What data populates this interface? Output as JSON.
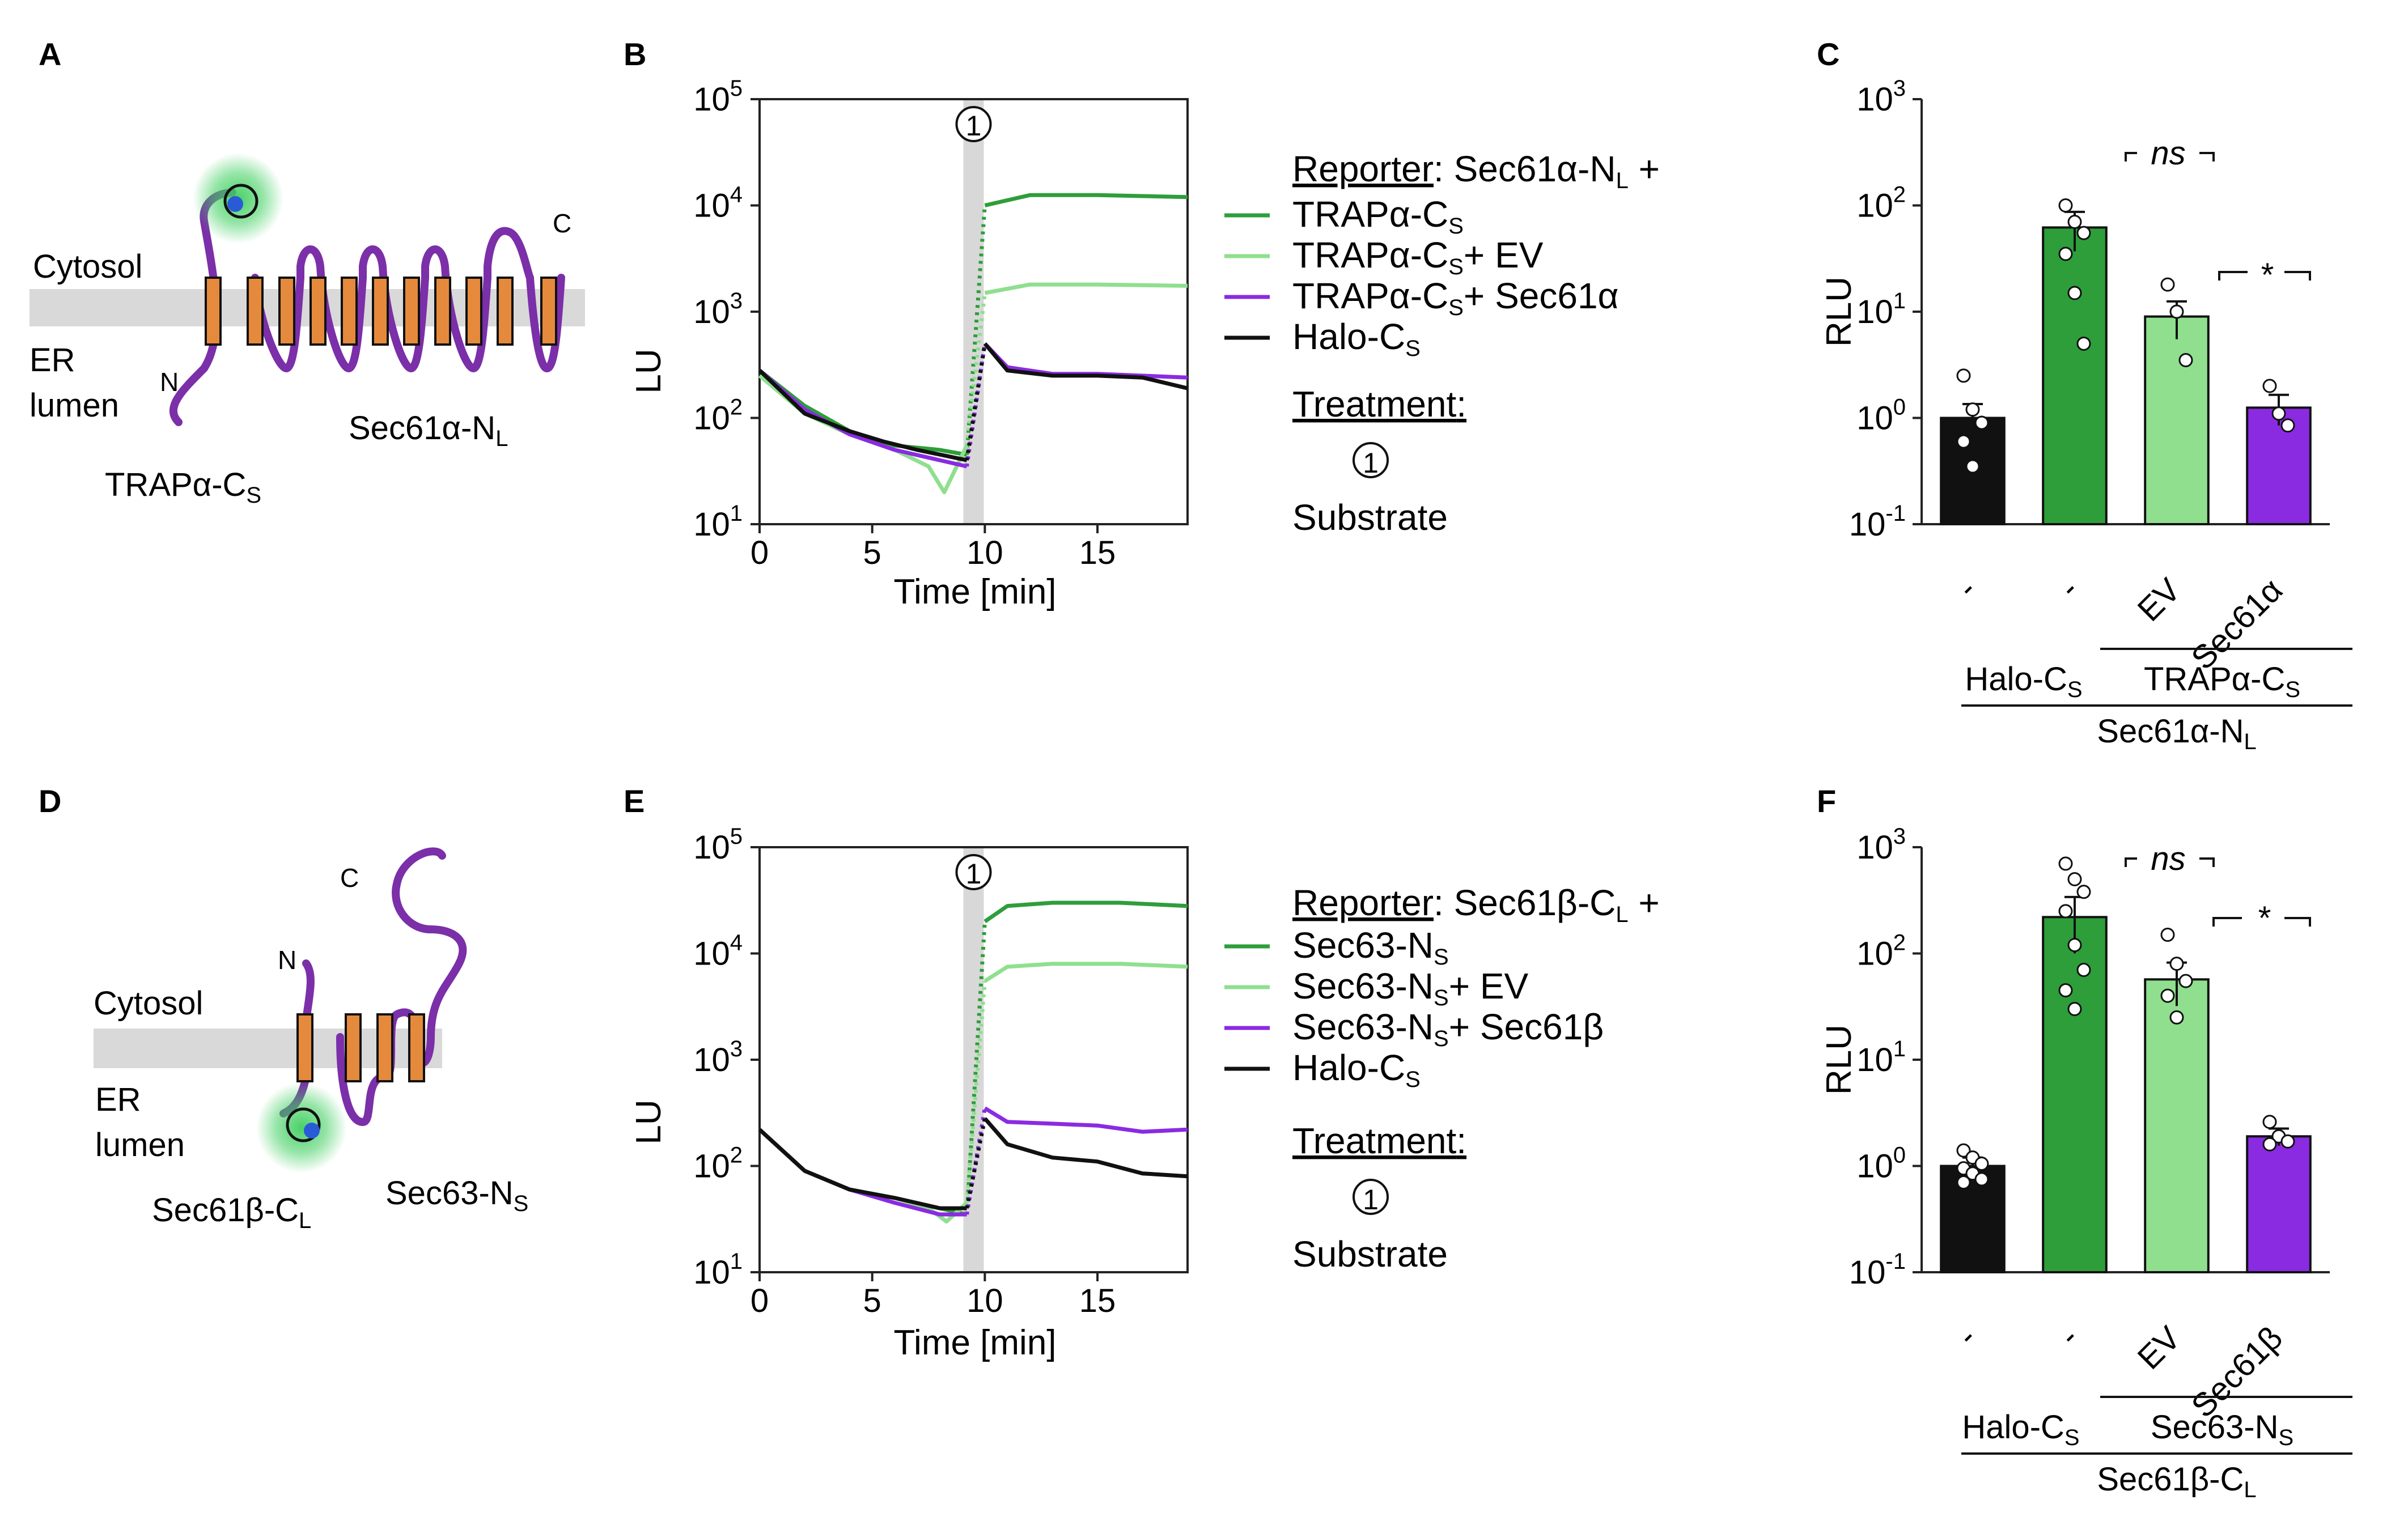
{
  "panels": {
    "A": {
      "letter": "A",
      "cytosol": "Cytosol",
      "er1": "ER",
      "er2": "lumen",
      "n_term": "N",
      "c_term": "C",
      "protein1": "TRAPα-C",
      "protein1_sub": "S",
      "protein2": "Sec61α-N",
      "protein2_sub": "L"
    },
    "B": {
      "letter": "B",
      "ylabel": "LU",
      "xlabel": "Time [min]",
      "xticks": [
        "0",
        "5",
        "10",
        "15"
      ],
      "yticks": [
        {
          "b": "10",
          "e": "1"
        },
        {
          "b": "10",
          "e": "2"
        },
        {
          "b": "10",
          "e": "3"
        },
        {
          "b": "10",
          "e": "4"
        },
        {
          "b": "10",
          "e": "5"
        }
      ],
      "marker": "1",
      "reporter_title": "Reporter",
      "reporter_rest": ": Sec61α-N",
      "reporter_sub": "L",
      "reporter_plus": " +",
      "legend": [
        {
          "main": "TRAPα-C",
          "sub": "S",
          "tail": "",
          "color": "#2e9e3a"
        },
        {
          "main": "TRAPα-C",
          "sub": "S",
          "tail": "+ EV",
          "color": "#8fdf8f"
        },
        {
          "main": "TRAPα-C",
          "sub": "S",
          "tail": "+ Sec61α",
          "color": "#8a2be2"
        },
        {
          "main": "Halo-C",
          "sub": "S",
          "tail": "",
          "color": "#111111"
        }
      ],
      "treatment": "Treatment",
      "treatment_colon": ":",
      "substrate": "Substrate"
    },
    "C": {
      "letter": "C",
      "ylabel": "RLU",
      "ns": "ns",
      "star": "*",
      "yticks": [
        {
          "b": "10",
          "e": "-1"
        },
        {
          "b": "10",
          "e": "0"
        },
        {
          "b": "10",
          "e": "1"
        },
        {
          "b": "10",
          "e": "2"
        },
        {
          "b": "10",
          "e": "3"
        }
      ],
      "xcats": [
        "-",
        "-",
        "EV",
        "Sec61α"
      ],
      "group1": "Halo-C",
      "group1_sub": "S",
      "group2": "TRAPα-C",
      "group2_sub": "S",
      "group3": "Sec61α-N",
      "group3_sub": "L"
    },
    "D": {
      "letter": "D",
      "cytosol": "Cytosol",
      "er1": "ER",
      "er2": "lumen",
      "n_term": "N",
      "c_term": "C",
      "protein1": "Sec61β-C",
      "protein1_sub": "L",
      "protein2": "Sec63-N",
      "protein2_sub": "S"
    },
    "E": {
      "letter": "E",
      "ylabel": "LU",
      "xlabel": "Time [min]",
      "xticks": [
        "0",
        "5",
        "10",
        "15"
      ],
      "yticks": [
        {
          "b": "10",
          "e": "1"
        },
        {
          "b": "10",
          "e": "2"
        },
        {
          "b": "10",
          "e": "3"
        },
        {
          "b": "10",
          "e": "4"
        },
        {
          "b": "10",
          "e": "5"
        }
      ],
      "marker": "1",
      "reporter_title": "Reporter",
      "reporter_rest": ": Sec61β-C",
      "reporter_sub": "L",
      "reporter_plus": " +",
      "legend": [
        {
          "main": "Sec63-N",
          "sub": "S",
          "tail": "",
          "color": "#2e9e3a"
        },
        {
          "main": "Sec63-N",
          "sub": "S",
          "tail": "+ EV",
          "color": "#8fdf8f"
        },
        {
          "main": "Sec63-N",
          "sub": "S",
          "tail": "+ Sec61β",
          "color": "#8a2be2"
        },
        {
          "main": "Halo-C",
          "sub": "S",
          "tail": "",
          "color": "#111111"
        }
      ],
      "treatment": "Treatment",
      "treatment_colon": ":",
      "substrate": "Substrate"
    },
    "F": {
      "letter": "F",
      "ylabel": "RLU",
      "ns": "ns",
      "star": "*",
      "yticks": [
        {
          "b": "10",
          "e": "-1"
        },
        {
          "b": "10",
          "e": "0"
        },
        {
          "b": "10",
          "e": "1"
        },
        {
          "b": "10",
          "e": "2"
        },
        {
          "b": "10",
          "e": "3"
        }
      ],
      "xcats": [
        "-",
        "-",
        "EV",
        "Sec61β"
      ],
      "group1": "Halo-C",
      "group1_sub": "S",
      "group2": "Sec63-N",
      "group2_sub": "S",
      "group3": "Sec61β-C",
      "group3_sub": "L"
    }
  },
  "colors": {
    "green": "#2e9e3a",
    "lightgreen": "#8fdf8f",
    "purple": "#8a2be2",
    "black": "#111111",
    "membrane": "#d9d9d9",
    "helix": "#e58a3c",
    "chain": "#7b2fa8",
    "glow": "#3fcf5f",
    "substrate_band": "#d8d8d8"
  },
  "chart_data": [
    {
      "panel": "B",
      "type": "line",
      "xlabel": "Time [min]",
      "ylabel": "LU",
      "xlim": [
        0,
        19
      ],
      "ylim": [
        10,
        100000
      ],
      "log_y": true,
      "substrate_added_min": 9.5,
      "series": [
        {
          "name": "TRAPα-CS",
          "color": "#2e9e3a",
          "x": [
            0,
            2,
            4,
            6,
            8,
            9.2,
            10,
            12,
            15,
            19
          ],
          "y": [
            280,
            130,
            75,
            55,
            50,
            45,
            10000,
            12500,
            12500,
            12000
          ]
        },
        {
          "name": "TRAPα-CS + EV",
          "color": "#8fdf8f",
          "x": [
            0,
            2,
            4,
            6,
            7.5,
            8.2,
            9.2,
            10,
            12,
            15,
            19
          ],
          "y": [
            250,
            110,
            70,
            50,
            35,
            20,
            55,
            1500,
            1800,
            1800,
            1750
          ]
        },
        {
          "name": "TRAPα-CS + Sec61α",
          "color": "#8a2be2",
          "x": [
            0,
            2,
            4,
            6,
            8,
            9.2,
            10,
            11,
            13,
            15,
            19
          ],
          "y": [
            280,
            120,
            70,
            50,
            40,
            35,
            500,
            300,
            260,
            260,
            240
          ]
        },
        {
          "name": "Halo-CS",
          "color": "#111111",
          "x": [
            0,
            2,
            4,
            5.5,
            7,
            9.2,
            10,
            11,
            13,
            15,
            17,
            19
          ],
          "y": [
            280,
            110,
            75,
            60,
            50,
            40,
            500,
            280,
            250,
            250,
            240,
            190
          ]
        }
      ]
    },
    {
      "panel": "C",
      "type": "bar",
      "ylabel": "RLU",
      "log_y": true,
      "ylim": [
        0.1,
        1000
      ],
      "categories": [
        "-",
        "-",
        "EV",
        "Sec61α"
      ],
      "values": [
        1.0,
        62,
        9,
        1.25
      ],
      "errors": [
        0.35,
        25,
        3.5,
        0.4
      ],
      "colors": [
        "#111111",
        "#2e9e3a",
        "#8fdf8f",
        "#8a2be2"
      ],
      "points": [
        [
          2.5,
          1.2,
          0.9,
          0.6,
          0.35,
          0.9
        ],
        [
          100,
          70,
          55,
          35,
          15,
          5
        ],
        [
          18,
          10,
          3.5
        ],
        [
          2,
          1.1,
          0.85
        ]
      ]
    },
    {
      "panel": "E",
      "type": "line",
      "xlabel": "Time [min]",
      "ylabel": "LU",
      "xlim": [
        0,
        19
      ],
      "ylim": [
        10,
        100000
      ],
      "log_y": true,
      "substrate_added_min": 9.5,
      "series": [
        {
          "name": "Sec63-NS",
          "color": "#2e9e3a",
          "x": [
            0,
            2,
            4,
            6,
            8,
            9.2,
            10,
            11,
            13,
            16,
            19
          ],
          "y": [
            220,
            90,
            60,
            50,
            40,
            35,
            20000,
            28000,
            30000,
            30000,
            28000
          ]
        },
        {
          "name": "Sec63-NS + EV",
          "color": "#8fdf8f",
          "x": [
            0,
            2,
            4,
            6,
            7.5,
            8.3,
            9.2,
            10,
            11,
            13,
            16,
            19
          ],
          "y": [
            220,
            90,
            60,
            50,
            40,
            30,
            45,
            5500,
            7500,
            8000,
            8000,
            7500
          ]
        },
        {
          "name": "Sec63-NS + Sec61β",
          "color": "#8a2be2",
          "x": [
            0,
            2,
            4,
            6,
            8,
            9.2,
            10,
            11,
            13,
            15,
            17,
            19
          ],
          "y": [
            220,
            90,
            60,
            45,
            35,
            35,
            350,
            260,
            250,
            240,
            210,
            220
          ]
        },
        {
          "name": "Halo-CS",
          "color": "#111111",
          "x": [
            0,
            2,
            4,
            6,
            8,
            9.2,
            10,
            11,
            13,
            15,
            17,
            19
          ],
          "y": [
            220,
            90,
            60,
            50,
            40,
            40,
            280,
            160,
            120,
            110,
            85,
            80
          ]
        }
      ]
    },
    {
      "panel": "F",
      "type": "bar",
      "ylabel": "RLU",
      "log_y": true,
      "ylim": [
        0.1,
        1000
      ],
      "categories": [
        "-",
        "-",
        "EV",
        "Sec61β"
      ],
      "values": [
        1.0,
        220,
        57,
        1.9
      ],
      "errors": [
        0.2,
        120,
        25,
        0.35
      ],
      "colors": [
        "#111111",
        "#2e9e3a",
        "#8fdf8f",
        "#8a2be2"
      ],
      "points": [
        [
          1.4,
          1.2,
          1.05,
          0.95,
          0.85,
          0.75,
          0.7
        ],
        [
          700,
          500,
          380,
          250,
          120,
          70,
          45,
          30
        ],
        [
          150,
          80,
          55,
          40,
          25
        ],
        [
          2.6,
          1.9,
          1.7,
          1.6
        ]
      ]
    }
  ]
}
